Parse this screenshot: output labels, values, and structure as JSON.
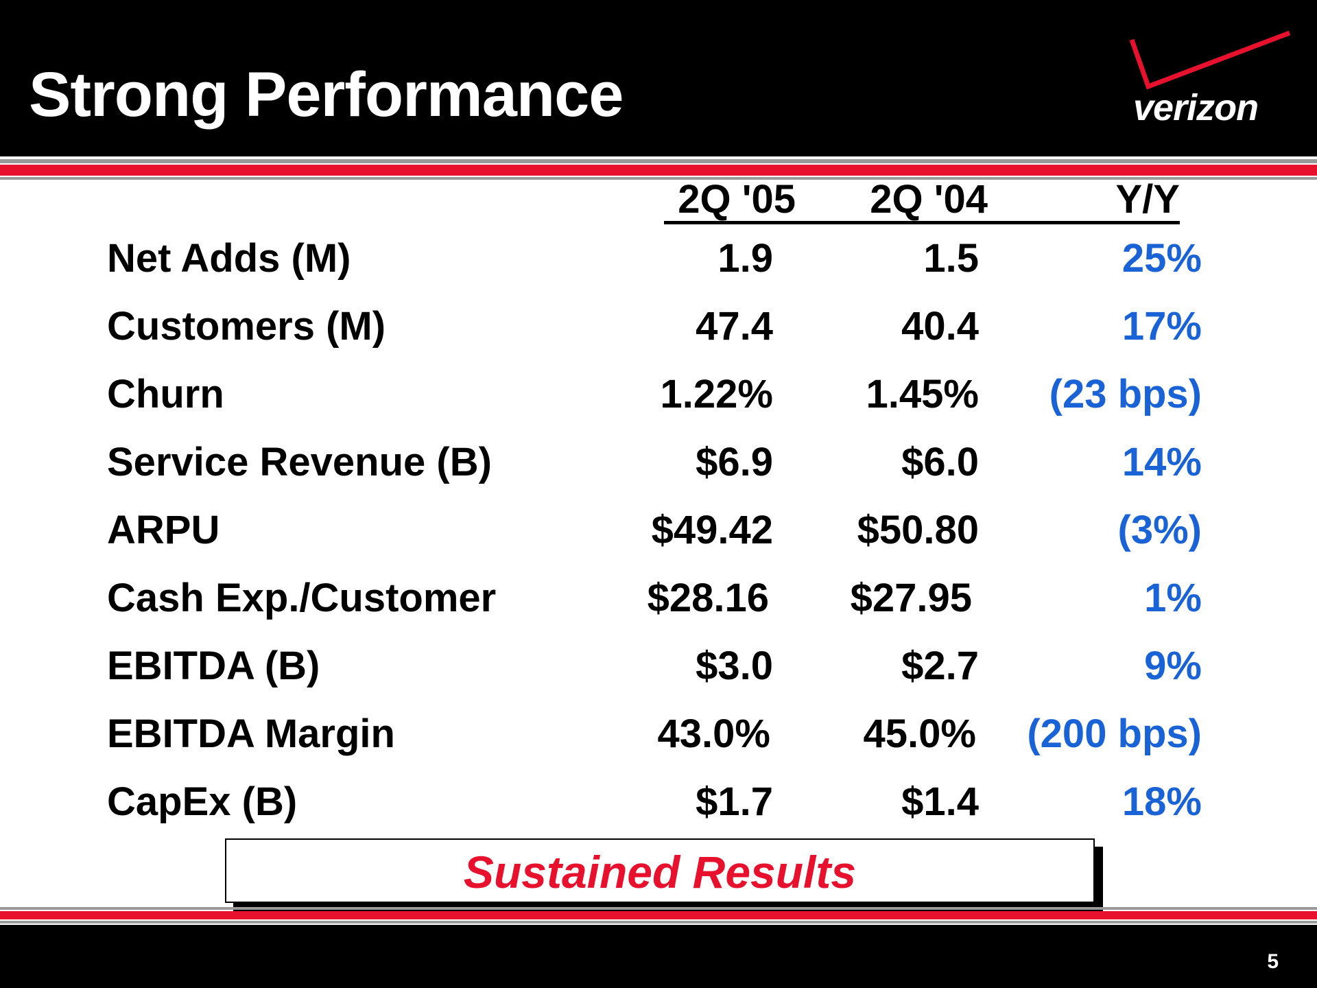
{
  "header": {
    "title": "Strong Performance",
    "logo_text": "verizon"
  },
  "columns": [
    "2Q '05",
    "2Q '04",
    "Y/Y"
  ],
  "rows": [
    {
      "label": "Net Adds (M)",
      "q05": "1.9",
      "q04": "1.5",
      "yy": "25%"
    },
    {
      "label": "Customers (M)",
      "q05": "47.4",
      "q04": "40.4",
      "yy": "17%"
    },
    {
      "label": "Churn",
      "q05": "1.22%",
      "q04": "1.45%",
      "yy": "(23 bps)"
    },
    {
      "label": "Service Revenue (B)",
      "q05": "$6.9",
      "q04": "$6.0",
      "yy": "14%"
    },
    {
      "label": "ARPU",
      "q05": "$49.42",
      "q04": "$50.80",
      "yy": "(3%)"
    },
    {
      "label": "Cash Exp./Customer",
      "q05": "$28.16",
      "q04": "$27.95",
      "yy": "1%"
    },
    {
      "label": "EBITDA (B)",
      "q05": "$3.0",
      "q04": "$2.7",
      "yy": "9%"
    },
    {
      "label": "EBITDA Margin",
      "q05": "43.0%",
      "q04": "45.0%",
      "yy": "(200 bps)"
    },
    {
      "label": "CapEx (B)",
      "q05": "$1.7",
      "q04": "$1.4",
      "yy": "18%"
    }
  ],
  "callout": "Sustained Results",
  "footer": {
    "page_number": "5"
  },
  "colors": {
    "accent_red": "#e8112d",
    "value_blue": "#1a63d6",
    "header_black": "#000000"
  }
}
